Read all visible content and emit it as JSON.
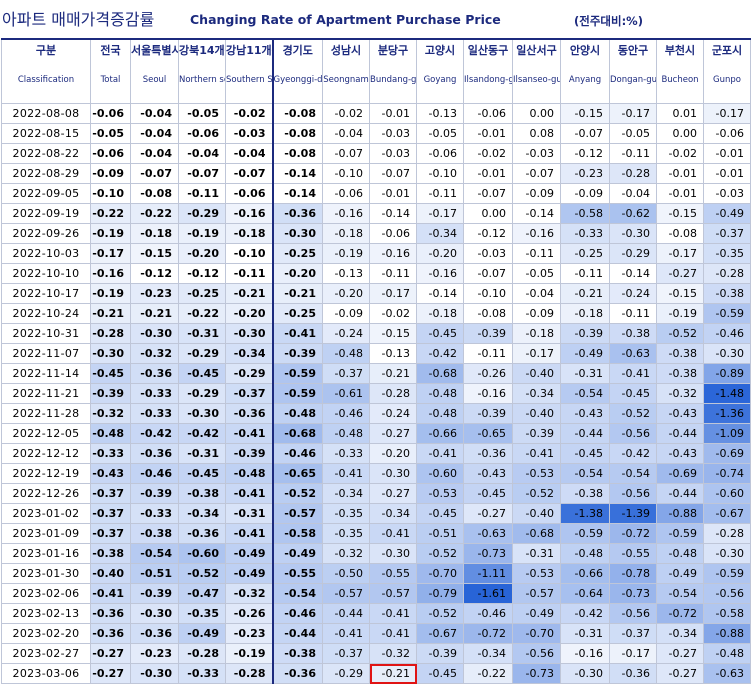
{
  "title": {
    "korean": "아파트 매매가격증감률",
    "english": "Changing Rate of Apartment Purchase Price",
    "unit": "(전주대비:%)"
  },
  "headers": [
    {
      "ko": "구분",
      "en": "Classification"
    },
    {
      "ko": "전국",
      "en": "Total"
    },
    {
      "ko": "서울특별시",
      "en": "Seoul"
    },
    {
      "ko": "강북14개구",
      "en": "Northern seoul"
    },
    {
      "ko": "강남11개구",
      "en": "Southern Seoul"
    },
    {
      "ko": "경기도",
      "en": "Gyeonggi-do"
    },
    {
      "ko": "성남시",
      "en": "Seongnam"
    },
    {
      "ko": "분당구",
      "en": "Bundang-gu"
    },
    {
      "ko": "고양시",
      "en": "Goyang"
    },
    {
      "ko": "일산동구",
      "en": "Ilsandong-gu"
    },
    {
      "ko": "일산서구",
      "en": "Ilsanseo-gu"
    },
    {
      "ko": "안양시",
      "en": "Anyang"
    },
    {
      "ko": "동안구",
      "en": "Dongan-gu"
    },
    {
      "ko": "부천시",
      "en": "Bucheon"
    },
    {
      "ko": "군포시",
      "en": "Gunpo"
    }
  ],
  "rows": [
    {
      "date": "2022-08-08",
      "values": [
        "-0.06",
        "-0.04",
        "-0.05",
        "-0.02",
        "-0.08",
        "-0.02",
        "-0.01",
        "-0.13",
        "-0.06",
        "0.00",
        "-0.15",
        "-0.17",
        "0.01",
        "-0.17"
      ]
    },
    {
      "date": "2022-08-15",
      "values": [
        "-0.05",
        "-0.04",
        "-0.06",
        "-0.03",
        "-0.08",
        "-0.04",
        "-0.03",
        "-0.05",
        "-0.01",
        "0.08",
        "-0.07",
        "-0.05",
        "0.00",
        "-0.06"
      ]
    },
    {
      "date": "2022-08-22",
      "values": [
        "-0.06",
        "-0.04",
        "-0.04",
        "-0.04",
        "-0.08",
        "-0.07",
        "-0.03",
        "-0.06",
        "-0.02",
        "-0.03",
        "-0.12",
        "-0.11",
        "-0.02",
        "-0.01"
      ]
    },
    {
      "date": "2022-08-29",
      "values": [
        "-0.09",
        "-0.07",
        "-0.07",
        "-0.07",
        "-0.14",
        "-0.10",
        "-0.07",
        "-0.10",
        "-0.01",
        "-0.07",
        "-0.23",
        "-0.28",
        "-0.01",
        "-0.01"
      ]
    },
    {
      "date": "2022-09-05",
      "values": [
        "-0.10",
        "-0.08",
        "-0.11",
        "-0.06",
        "-0.14",
        "-0.06",
        "-0.01",
        "-0.11",
        "-0.07",
        "-0.09",
        "-0.09",
        "-0.04",
        "-0.01",
        "-0.03"
      ]
    },
    {
      "date": "2022-09-19",
      "values": [
        "-0.22",
        "-0.22",
        "-0.29",
        "-0.16",
        "-0.36",
        "-0.16",
        "-0.14",
        "-0.17",
        "0.00",
        "-0.14",
        "-0.58",
        "-0.62",
        "-0.15",
        "-0.49"
      ]
    },
    {
      "date": "2022-09-26",
      "values": [
        "-0.19",
        "-0.18",
        "-0.19",
        "-0.18",
        "-0.30",
        "-0.18",
        "-0.06",
        "-0.34",
        "-0.12",
        "-0.16",
        "-0.33",
        "-0.30",
        "-0.08",
        "-0.37"
      ]
    },
    {
      "date": "2022-10-03",
      "values": [
        "-0.17",
        "-0.15",
        "-0.20",
        "-0.10",
        "-0.25",
        "-0.19",
        "-0.16",
        "-0.20",
        "-0.03",
        "-0.11",
        "-0.25",
        "-0.29",
        "-0.17",
        "-0.35"
      ]
    },
    {
      "date": "2022-10-10",
      "values": [
        "-0.16",
        "-0.12",
        "-0.12",
        "-0.11",
        "-0.20",
        "-0.13",
        "-0.11",
        "-0.16",
        "-0.07",
        "-0.05",
        "-0.11",
        "-0.14",
        "-0.27",
        "-0.28"
      ]
    },
    {
      "date": "2022-10-17",
      "values": [
        "-0.19",
        "-0.23",
        "-0.25",
        "-0.21",
        "-0.21",
        "-0.20",
        "-0.17",
        "-0.14",
        "-0.10",
        "-0.04",
        "-0.21",
        "-0.24",
        "-0.15",
        "-0.38"
      ]
    },
    {
      "date": "2022-10-24",
      "values": [
        "-0.21",
        "-0.21",
        "-0.22",
        "-0.20",
        "-0.25",
        "-0.09",
        "-0.02",
        "-0.18",
        "-0.08",
        "-0.09",
        "-0.18",
        "-0.11",
        "-0.19",
        "-0.59"
      ]
    },
    {
      "date": "2022-10-31",
      "values": [
        "-0.28",
        "-0.30",
        "-0.31",
        "-0.30",
        "-0.41",
        "-0.24",
        "-0.15",
        "-0.45",
        "-0.39",
        "-0.18",
        "-0.39",
        "-0.38",
        "-0.52",
        "-0.46"
      ]
    },
    {
      "date": "2022-11-07",
      "values": [
        "-0.30",
        "-0.32",
        "-0.29",
        "-0.34",
        "-0.39",
        "-0.48",
        "-0.13",
        "-0.42",
        "-0.11",
        "-0.17",
        "-0.49",
        "-0.63",
        "-0.38",
        "-0.30"
      ]
    },
    {
      "date": "2022-11-14",
      "values": [
        "-0.45",
        "-0.36",
        "-0.45",
        "-0.29",
        "-0.59",
        "-0.37",
        "-0.21",
        "-0.68",
        "-0.26",
        "-0.40",
        "-0.31",
        "-0.41",
        "-0.38",
        "-0.89"
      ]
    },
    {
      "date": "2022-11-21",
      "values": [
        "-0.39",
        "-0.33",
        "-0.29",
        "-0.37",
        "-0.59",
        "-0.61",
        "-0.28",
        "-0.48",
        "-0.16",
        "-0.34",
        "-0.54",
        "-0.45",
        "-0.32",
        "-1.48"
      ]
    },
    {
      "date": "2022-11-28",
      "values": [
        "-0.32",
        "-0.33",
        "-0.30",
        "-0.36",
        "-0.48",
        "-0.46",
        "-0.24",
        "-0.48",
        "-0.39",
        "-0.40",
        "-0.43",
        "-0.52",
        "-0.43",
        "-1.36"
      ]
    },
    {
      "date": "2022-12-05",
      "values": [
        "-0.48",
        "-0.42",
        "-0.42",
        "-0.41",
        "-0.68",
        "-0.48",
        "-0.27",
        "-0.66",
        "-0.65",
        "-0.39",
        "-0.44",
        "-0.56",
        "-0.44",
        "-1.09"
      ]
    },
    {
      "date": "2022-12-12",
      "values": [
        "-0.33",
        "-0.36",
        "-0.31",
        "-0.39",
        "-0.46",
        "-0.33",
        "-0.20",
        "-0.41",
        "-0.36",
        "-0.41",
        "-0.45",
        "-0.42",
        "-0.43",
        "-0.69"
      ]
    },
    {
      "date": "2022-12-19",
      "values": [
        "-0.43",
        "-0.46",
        "-0.45",
        "-0.48",
        "-0.65",
        "-0.41",
        "-0.30",
        "-0.60",
        "-0.43",
        "-0.53",
        "-0.54",
        "-0.54",
        "-0.69",
        "-0.74"
      ]
    },
    {
      "date": "2022-12-26",
      "values": [
        "-0.37",
        "-0.39",
        "-0.38",
        "-0.41",
        "-0.52",
        "-0.34",
        "-0.27",
        "-0.53",
        "-0.45",
        "-0.52",
        "-0.38",
        "-0.56",
        "-0.44",
        "-0.60"
      ]
    },
    {
      "date": "2023-01-02",
      "values": [
        "-0.37",
        "-0.33",
        "-0.34",
        "-0.31",
        "-0.57",
        "-0.35",
        "-0.34",
        "-0.45",
        "-0.27",
        "-0.40",
        "-1.38",
        "-1.39",
        "-0.88",
        "-0.67"
      ]
    },
    {
      "date": "2023-01-09",
      "values": [
        "-0.37",
        "-0.38",
        "-0.36",
        "-0.41",
        "-0.58",
        "-0.35",
        "-0.41",
        "-0.51",
        "-0.63",
        "-0.68",
        "-0.59",
        "-0.72",
        "-0.59",
        "-0.28"
      ]
    },
    {
      "date": "2023-01-16",
      "values": [
        "-0.38",
        "-0.54",
        "-0.60",
        "-0.49",
        "-0.49",
        "-0.32",
        "-0.30",
        "-0.52",
        "-0.73",
        "-0.31",
        "-0.48",
        "-0.55",
        "-0.48",
        "-0.30"
      ]
    },
    {
      "date": "2023-01-30",
      "values": [
        "-0.40",
        "-0.51",
        "-0.52",
        "-0.49",
        "-0.55",
        "-0.50",
        "-0.55",
        "-0.70",
        "-1.11",
        "-0.53",
        "-0.66",
        "-0.78",
        "-0.49",
        "-0.59"
      ]
    },
    {
      "date": "2023-02-06",
      "values": [
        "-0.41",
        "-0.39",
        "-0.47",
        "-0.32",
        "-0.54",
        "-0.57",
        "-0.57",
        "-0.79",
        "-1.61",
        "-0.57",
        "-0.64",
        "-0.73",
        "-0.54",
        "-0.56"
      ]
    },
    {
      "date": "2023-02-13",
      "values": [
        "-0.36",
        "-0.30",
        "-0.35",
        "-0.26",
        "-0.46",
        "-0.44",
        "-0.41",
        "-0.52",
        "-0.46",
        "-0.49",
        "-0.42",
        "-0.56",
        "-0.72",
        "-0.58"
      ]
    },
    {
      "date": "2023-02-20",
      "values": [
        "-0.36",
        "-0.36",
        "-0.49",
        "-0.23",
        "-0.44",
        "-0.41",
        "-0.41",
        "-0.67",
        "-0.72",
        "-0.70",
        "-0.31",
        "-0.37",
        "-0.34",
        "-0.88"
      ]
    },
    {
      "date": "2023-02-27",
      "values": [
        "-0.27",
        "-0.23",
        "-0.28",
        "-0.19",
        "-0.38",
        "-0.37",
        "-0.32",
        "-0.39",
        "-0.34",
        "-0.56",
        "-0.16",
        "-0.17",
        "-0.27",
        "-0.48"
      ]
    },
    {
      "date": "2023-03-06",
      "values": [
        "-0.27",
        "-0.30",
        "-0.33",
        "-0.28",
        "-0.36",
        "-0.29",
        "-0.21",
        "-0.45",
        "-0.22",
        "-0.73",
        "-0.30",
        "-0.36",
        "-0.27",
        "-0.63"
      ]
    }
  ],
  "highlighted_cell": {
    "date": "2023-03-06",
    "column": "분당구",
    "value": "-0.21"
  }
}
